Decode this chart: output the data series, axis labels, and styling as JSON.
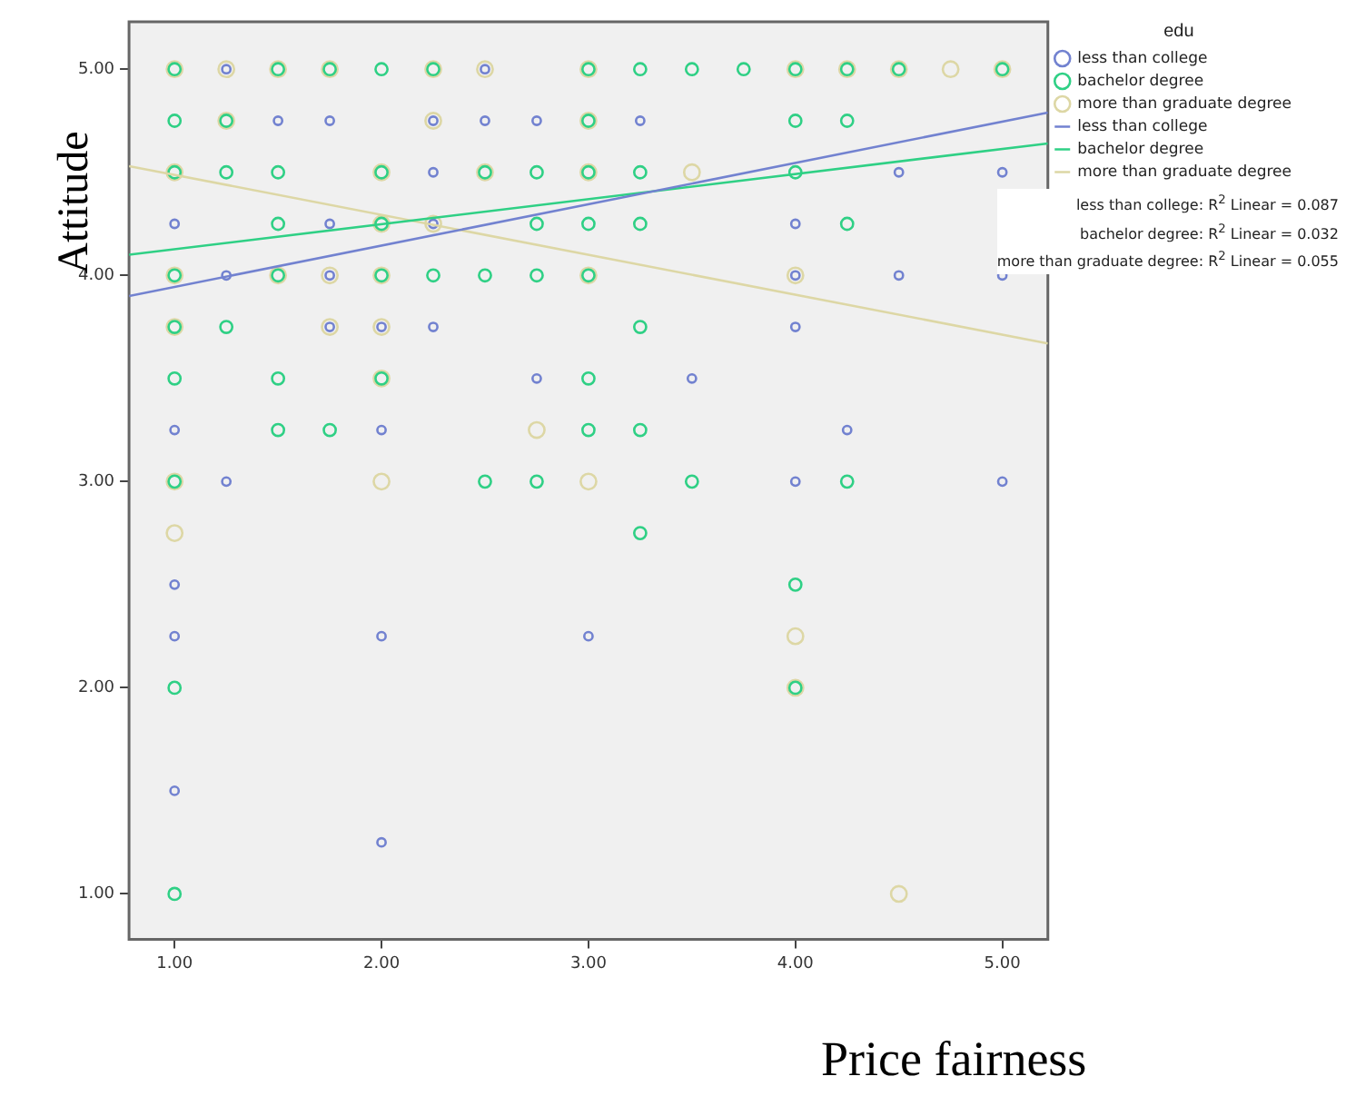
{
  "chart_data": {
    "type": "scatter",
    "xlabel": "Price fairness",
    "ylabel": "Attitude",
    "legend_title": "edu",
    "legend": "right",
    "marker": "circle",
    "xlim": [
      0.78,
      5.22
    ],
    "ylim": [
      0.78,
      5.23
    ],
    "xticks": [
      {
        "value": 1,
        "label": "1.00"
      },
      {
        "value": 2,
        "label": "2.00"
      },
      {
        "value": 3,
        "label": "3.00"
      },
      {
        "value": 4,
        "label": "4.00"
      },
      {
        "value": 5,
        "label": "5.00"
      }
    ],
    "yticks": [
      {
        "value": 1,
        "label": "1.00"
      },
      {
        "value": 2,
        "label": "2.00"
      },
      {
        "value": 3,
        "label": "3.00"
      },
      {
        "value": 4,
        "label": "4.00"
      },
      {
        "value": 5,
        "label": "5.00"
      }
    ],
    "series": [
      {
        "name": "less than college",
        "color": "#7282d0",
        "x": [
          2.5,
          1.25,
          1.5,
          1.75,
          2.25,
          2.5,
          2.75,
          3.25,
          2.25,
          4.5,
          5,
          1,
          1.75,
          2.25,
          4,
          1.25,
          1.75,
          4,
          4.5,
          5,
          1.75,
          2,
          2.25,
          4,
          2.75,
          3.5,
          1,
          2,
          4.25,
          1.25,
          4,
          5,
          1,
          1,
          2,
          3,
          1,
          2
        ],
        "values": [
          5,
          5,
          4.75,
          4.75,
          4.75,
          4.75,
          4.75,
          4.75,
          4.5,
          4.5,
          4.5,
          4.25,
          4.25,
          4.25,
          4.25,
          4,
          4,
          4,
          4,
          4,
          3.75,
          3.75,
          3.75,
          3.75,
          3.5,
          3.5,
          3.25,
          3.25,
          3.25,
          3,
          3,
          3,
          2.5,
          2.25,
          2.25,
          2.25,
          1.5,
          1.25
        ]
      },
      {
        "name": "bachelor degree",
        "color": "#2fd085",
        "x": [
          1,
          1.5,
          1.75,
          2,
          2.25,
          3,
          3.25,
          3.5,
          3.75,
          4,
          4.25,
          4.5,
          5,
          1,
          1.25,
          3,
          4,
          4.25,
          1,
          1.25,
          1.5,
          2,
          2.5,
          2.75,
          3,
          3.25,
          4,
          1.5,
          2,
          2.75,
          3,
          3.25,
          4.25,
          1,
          1.5,
          2,
          2.25,
          2.5,
          2.75,
          3,
          1,
          1.25,
          3.25,
          1,
          1.5,
          2,
          3,
          1.5,
          1.75,
          3,
          3.25,
          1,
          2.5,
          2.75,
          3.5,
          4.25,
          3.25,
          4,
          1,
          4,
          1
        ],
        "values": [
          5,
          5,
          5,
          5,
          5,
          5,
          5,
          5,
          5,
          5,
          5,
          5,
          5,
          4.75,
          4.75,
          4.75,
          4.75,
          4.75,
          4.5,
          4.5,
          4.5,
          4.5,
          4.5,
          4.5,
          4.5,
          4.5,
          4.5,
          4.25,
          4.25,
          4.25,
          4.25,
          4.25,
          4.25,
          4,
          4,
          4,
          4,
          4,
          4,
          4,
          3.75,
          3.75,
          3.75,
          3.5,
          3.5,
          3.5,
          3.5,
          3.25,
          3.25,
          3.25,
          3.25,
          3,
          3,
          3,
          3,
          3,
          2.75,
          2.5,
          2,
          2,
          1
        ]
      },
      {
        "name": "more than graduate degree",
        "color": "#ddd7a5",
        "x": [
          1,
          1.25,
          1.5,
          1.75,
          2.25,
          2.5,
          3,
          4,
          4.25,
          4.5,
          4.75,
          5,
          1.25,
          2.25,
          3,
          1,
          2,
          2.5,
          3,
          3.5,
          2,
          2.25,
          1,
          1.5,
          1.75,
          2,
          3,
          4,
          1,
          1.75,
          2,
          2,
          2.75,
          1,
          2,
          3,
          1,
          4,
          4,
          4.5
        ],
        "values": [
          5,
          5,
          5,
          5,
          5,
          5,
          5,
          5,
          5,
          5,
          5,
          5,
          4.75,
          4.75,
          4.75,
          4.5,
          4.5,
          4.5,
          4.5,
          4.5,
          4.25,
          4.25,
          4,
          4,
          4,
          4,
          4,
          4,
          3.75,
          3.75,
          3.75,
          3.5,
          3.25,
          3,
          3,
          3,
          2.75,
          2.25,
          2,
          1
        ]
      },
      {
        "name": "less than college",
        "type": "line",
        "marker": "none",
        "color": "#7282d0",
        "x": [
          0.78,
          5.22
        ],
        "values": [
          3.9,
          4.79
        ]
      },
      {
        "name": "bachelor degree",
        "type": "line",
        "marker": "none",
        "color": "#2fd085",
        "x": [
          0.78,
          5.22
        ],
        "values": [
          4.1,
          4.64
        ]
      },
      {
        "name": "more than graduate degree",
        "type": "line",
        "marker": "none",
        "color": "#ddd7a5",
        "x": [
          0.78,
          5.22
        ],
        "values": [
          4.53,
          3.67
        ]
      }
    ],
    "annotations": [
      "less than college: R$^{2}$ Linear = 0.087",
      "bachelor degree: R$^{2}$ Linear = 0.032",
      "more than graduate degree: R$^{2}$ Linear = 0.055"
    ]
  }
}
